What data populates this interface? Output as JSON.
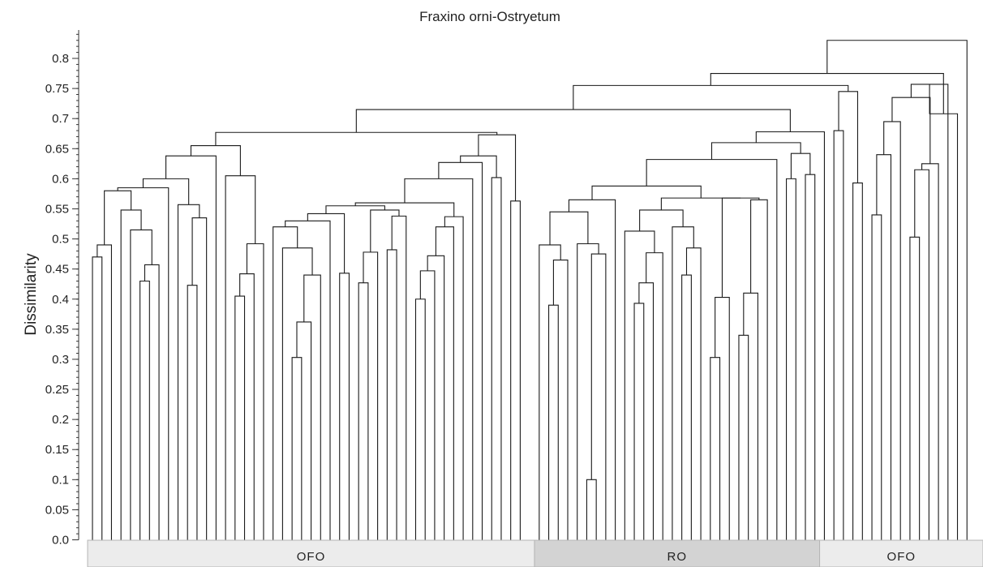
{
  "chart_data": {
    "type": "dendrogram",
    "title": "Fraxino orni-Ostryetum",
    "ylabel": "Dissimilarity",
    "ylim": [
      0,
      0.85
    ],
    "ytick_labels": [
      "0.0",
      "0.05",
      "0.1",
      "0.15",
      "0.2",
      "0.25",
      "0.3",
      "0.35",
      "0.4",
      "0.45",
      "0.5",
      "0.55",
      "0.6",
      "0.65",
      "0.7",
      "0.75",
      "0.8"
    ],
    "groups": [
      {
        "label": "OFO",
        "leaf_range": [
          0,
          46
        ],
        "color": "#ececec"
      },
      {
        "label": "RO",
        "leaf_range": [
          47,
          76
        ],
        "color": "#d3d3d3"
      },
      {
        "label": "OFO",
        "leaf_range": [
          77,
          91
        ],
        "color": "#ececec"
      }
    ],
    "merges": [
      {
        "id": "m1",
        "left": 0,
        "right": 1,
        "height": 0.47
      },
      {
        "id": "m2",
        "left": "m1",
        "right": 2,
        "height": 0.49
      },
      {
        "id": "m3",
        "left": 5,
        "right": 6,
        "height": 0.43
      },
      {
        "id": "m4",
        "left": "m3",
        "right": 7,
        "height": 0.457
      },
      {
        "id": "m5",
        "left": 4,
        "right": "m4",
        "height": 0.515
      },
      {
        "id": "m6",
        "left": 3,
        "right": "m5",
        "height": 0.548
      },
      {
        "id": "m7",
        "left": "m2",
        "right": "m6",
        "height": 0.58
      },
      {
        "id": "m8",
        "left": "m7",
        "right": 8,
        "height": 0.585
      },
      {
        "id": "m9",
        "left": 10,
        "right": 11,
        "height": 0.423
      },
      {
        "id": "m10",
        "left": "m9",
        "right": 12,
        "height": 0.535
      },
      {
        "id": "m11",
        "left": 9,
        "right": "m10",
        "height": 0.557
      },
      {
        "id": "m12",
        "left": "m8",
        "right": "m11",
        "height": 0.6
      },
      {
        "id": "m13",
        "left": "m12",
        "right": 13,
        "height": 0.638
      },
      {
        "id": "m14",
        "left": 15,
        "right": 16,
        "height": 0.405
      },
      {
        "id": "m15",
        "left": "m14",
        "right": 17,
        "height": 0.442
      },
      {
        "id": "m16",
        "left": "m15",
        "right": 18,
        "height": 0.492
      },
      {
        "id": "m17",
        "left": 14,
        "right": "m16",
        "height": 0.605
      },
      {
        "id": "m18",
        "left": "m13",
        "right": "m17",
        "height": 0.655
      },
      {
        "id": "m19",
        "left": 21,
        "right": 22,
        "height": 0.303
      },
      {
        "id": "m20",
        "left": "m19",
        "right": 23,
        "height": 0.362
      },
      {
        "id": "m21",
        "left": "m20",
        "right": 24,
        "height": 0.44
      },
      {
        "id": "m22",
        "left": 20,
        "right": "m21",
        "height": 0.485
      },
      {
        "id": "m23",
        "left": 19,
        "right": "m22",
        "height": 0.52
      },
      {
        "id": "m24",
        "left": "m23",
        "right": 25,
        "height": 0.53
      },
      {
        "id": "m25",
        "left": 26,
        "right": 27,
        "height": 0.443
      },
      {
        "id": "m26",
        "left": "m24",
        "right": "m25",
        "height": 0.542
      },
      {
        "id": "m27",
        "left": 28,
        "right": 29,
        "height": 0.427
      },
      {
        "id": "m28",
        "left": "m27",
        "right": 30,
        "height": 0.478
      },
      {
        "id": "m29",
        "left": 31,
        "right": 32,
        "height": 0.482
      },
      {
        "id": "m30",
        "left": "m29",
        "right": 33,
        "height": 0.538
      },
      {
        "id": "m31",
        "left": "m28",
        "right": "m30",
        "height": 0.548
      },
      {
        "id": "m32",
        "left": "m26",
        "right": "m31",
        "height": 0.555
      },
      {
        "id": "m33",
        "left": 34,
        "right": 35,
        "height": 0.4
      },
      {
        "id": "m34",
        "left": "m33",
        "right": 36,
        "height": 0.447
      },
      {
        "id": "m35",
        "left": "m34",
        "right": 37,
        "height": 0.472
      },
      {
        "id": "m36",
        "left": "m35",
        "right": 38,
        "height": 0.52
      },
      {
        "id": "m37",
        "left": "m36",
        "right": 39,
        "height": 0.537
      },
      {
        "id": "m38",
        "left": "m32",
        "right": "m37",
        "height": 0.56
      },
      {
        "id": "m39",
        "left": "m38",
        "right": 40,
        "height": 0.6
      },
      {
        "id": "m40",
        "left": "m39",
        "right": 41,
        "height": 0.627
      },
      {
        "id": "m41",
        "left": 42,
        "right": 43,
        "height": 0.602
      },
      {
        "id": "m42",
        "left": "m40",
        "right": "m41",
        "height": 0.638
      },
      {
        "id": "m43",
        "left": 44,
        "right": 45,
        "height": 0.563
      },
      {
        "id": "m44",
        "left": "m42",
        "right": "m43",
        "height": 0.673
      },
      {
        "id": "m45",
        "left": "m18",
        "right": "m44",
        "height": 0.677
      },
      {
        "id": "m46",
        "left": 48,
        "right": 49,
        "height": 0.39
      },
      {
        "id": "m47",
        "left": "m46",
        "right": 50,
        "height": 0.465
      },
      {
        "id": "m48",
        "left": 47,
        "right": "m47",
        "height": 0.49
      },
      {
        "id": "m49",
        "left": 52,
        "right": 53,
        "height": 0.1
      },
      {
        "id": "m50",
        "left": "m49",
        "right": 54,
        "height": 0.475
      },
      {
        "id": "m51",
        "left": 51,
        "right": "m50",
        "height": 0.492
      },
      {
        "id": "m52",
        "left": "m48",
        "right": "m51",
        "height": 0.545
      },
      {
        "id": "m53",
        "left": "m52",
        "right": 55,
        "height": 0.565
      },
      {
        "id": "m54",
        "left": 57,
        "right": 58,
        "height": 0.393
      },
      {
        "id": "m55",
        "left": "m54",
        "right": 59,
        "height": 0.427
      },
      {
        "id": "m56",
        "left": "m55",
        "right": 60,
        "height": 0.477
      },
      {
        "id": "m57",
        "left": 56,
        "right": "m56",
        "height": 0.513
      },
      {
        "id": "m58",
        "left": 62,
        "right": 63,
        "height": 0.44
      },
      {
        "id": "m59",
        "left": "m58",
        "right": 64,
        "height": 0.485
      },
      {
        "id": "m60",
        "left": 61,
        "right": "m59",
        "height": 0.52
      },
      {
        "id": "m61",
        "left": "m57",
        "right": "m60",
        "height": 0.548
      },
      {
        "id": "m62",
        "left": 65,
        "right": 66,
        "height": 0.303
      },
      {
        "id": "m63",
        "left": "m62",
        "right": 67,
        "height": 0.403
      },
      {
        "id": "m64",
        "left": 68,
        "right": 69,
        "height": 0.34
      },
      {
        "id": "m65",
        "left": "m64",
        "right": 70,
        "height": 0.41
      },
      {
        "id": "m66",
        "left": "m65",
        "right": 71,
        "height": 0.565
      },
      {
        "id": "m67",
        "left": "m63",
        "right": "m66",
        "height": 0.568
      },
      {
        "id": "m68",
        "left": "m61",
        "right": "m67",
        "height": 0.568
      },
      {
        "id": "m69",
        "left": "m53",
        "right": "m68",
        "height": 0.588
      },
      {
        "id": "m70",
        "left": "m69",
        "right": 72,
        "height": 0.632
      },
      {
        "id": "m71",
        "left": 73,
        "right": 74,
        "height": 0.6
      },
      {
        "id": "m72",
        "left": 75,
        "right": 76,
        "height": 0.607
      },
      {
        "id": "m73",
        "left": "m71",
        "right": "m72",
        "height": 0.642
      },
      {
        "id": "m74",
        "left": "m70",
        "right": "m73",
        "height": 0.66
      },
      {
        "id": "m75",
        "left": "m74",
        "right": 77,
        "height": 0.678
      },
      {
        "id": "m76",
        "left": "m45",
        "right": "m75",
        "height": 0.715
      },
      {
        "id": "m77",
        "left": 78,
        "right": 79,
        "height": 0.68
      },
      {
        "id": "m78",
        "left": 80,
        "right": 81,
        "height": 0.593
      },
      {
        "id": "m79",
        "left": "m77",
        "right": "m78",
        "height": 0.745
      },
      {
        "id": "m80",
        "left": "m76",
        "right": "m79",
        "height": 0.755
      },
      {
        "id": "m81",
        "left": 82,
        "right": 83,
        "height": 0.54
      },
      {
        "id": "m82",
        "left": "m81",
        "right": 84,
        "height": 0.64
      },
      {
        "id": "m83",
        "left": "m82",
        "right": 85,
        "height": 0.695
      },
      {
        "id": "m84",
        "left": 86,
        "right": 87,
        "height": 0.503
      },
      {
        "id": "m85",
        "left": "m84",
        "right": 88,
        "height": 0.615
      },
      {
        "id": "m86",
        "left": "m85",
        "right": 89,
        "height": 0.625
      },
      {
        "id": "m87",
        "left": "m86",
        "right": "m83",
        "height": 0.735
      },
      {
        "id": "m88",
        "left": "m87",
        "right": 90,
        "height": 0.757
      },
      {
        "id": "m89",
        "left": "m88",
        "right": 91,
        "height": 0.708
      },
      {
        "id": "m90",
        "left": "m80",
        "right": "m89",
        "height": 0.775
      },
      {
        "id": "m91",
        "left": "m90",
        "right": 92,
        "height": 0.83
      }
    ]
  }
}
